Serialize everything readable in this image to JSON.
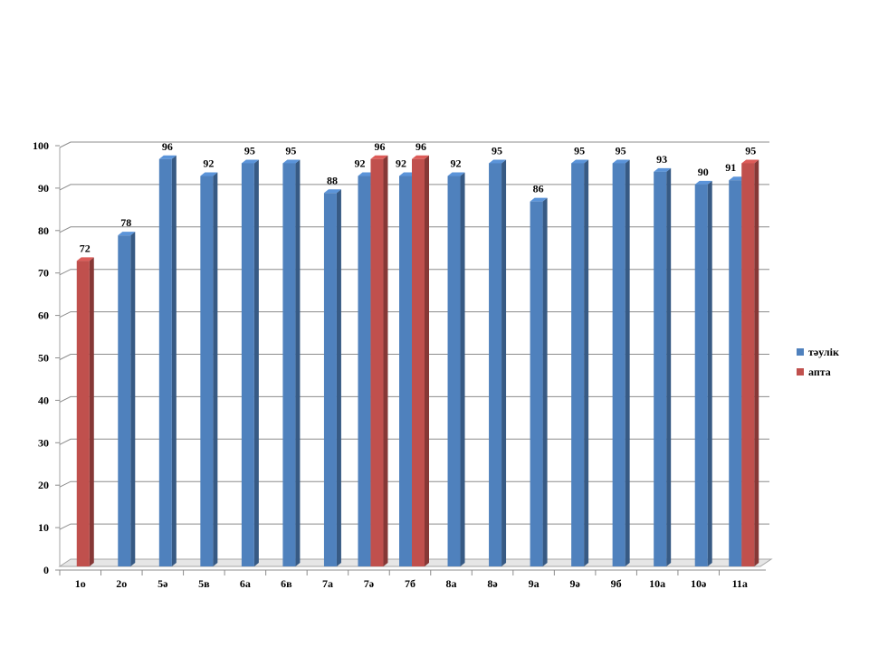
{
  "chart_data": {
    "type": "bar",
    "title": "",
    "xlabel": "",
    "ylabel": "",
    "ylim": [
      0,
      100
    ],
    "yticks": [
      0,
      10,
      20,
      30,
      40,
      50,
      60,
      70,
      80,
      90,
      100
    ],
    "grid": true,
    "legend_position": "right",
    "categories": [
      "1о",
      "2о",
      "5ә",
      "5в",
      "6а",
      "6в",
      "7а",
      "7ә",
      "7б",
      "8а",
      "8ә",
      "9а",
      "9ә",
      "9б",
      "10а",
      "10ә",
      "11а"
    ],
    "series": [
      {
        "name": "тәулік",
        "color": "#4F81BD",
        "values": [
          null,
          78,
          96,
          92,
          95,
          95,
          88,
          92,
          92,
          92,
          95,
          86,
          95,
          95,
          93,
          90,
          91
        ]
      },
      {
        "name": "апта",
        "color": "#C0504D",
        "values": [
          72,
          null,
          null,
          null,
          null,
          null,
          null,
          96,
          96,
          null,
          null,
          null,
          null,
          null,
          null,
          null,
          95
        ]
      }
    ]
  }
}
